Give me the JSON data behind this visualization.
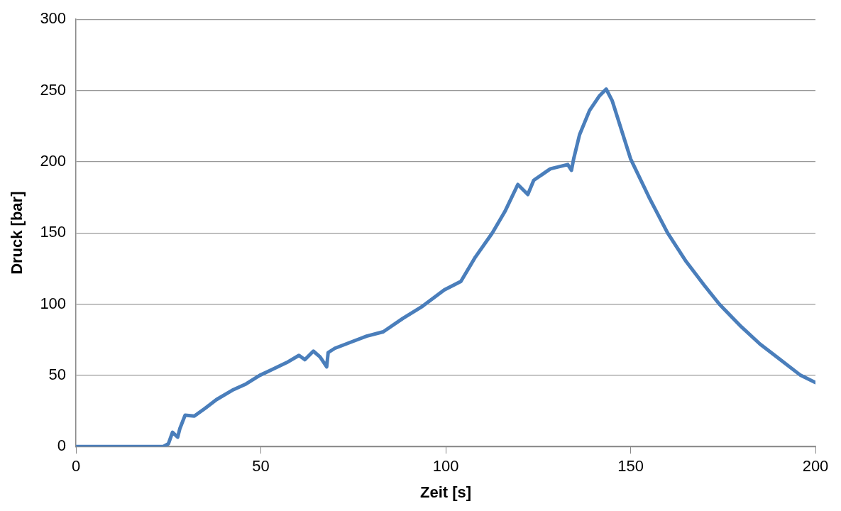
{
  "chart_data": {
    "type": "line",
    "xlabel": "Zeit [s]",
    "ylabel": "Druck [bar]",
    "x": [
      0,
      10,
      20,
      23.6,
      25,
      26.1,
      27.5,
      28.1,
      29.5,
      32,
      35,
      38,
      42.6,
      46,
      49.7,
      53,
      57,
      60.3,
      61.9,
      64.2,
      66,
      67.8,
      68.2,
      70,
      74,
      78.6,
      83.1,
      88.4,
      93.7,
      99.6,
      104.1,
      108,
      112.6,
      116,
      119.5,
      122.2,
      123.8,
      128.3,
      133,
      134,
      134.6,
      136.2,
      138.9,
      141.5,
      143.4,
      145,
      150,
      155,
      160,
      165,
      170,
      174,
      180,
      185,
      190,
      196,
      200
    ],
    "series": [
      {
        "color": "#4a7ebb",
        "values": [
          0,
          0,
          0,
          0,
          2,
          10,
          6.6,
          12.7,
          22,
          21.4,
          27,
          33,
          40,
          44,
          50,
          54,
          59,
          64,
          61,
          67,
          63,
          56,
          66,
          69,
          73,
          77.5,
          80.6,
          90,
          98.5,
          110,
          116,
          133,
          150,
          165,
          184,
          177,
          187,
          195,
          198,
          194,
          202,
          219,
          236,
          246,
          251,
          243,
          202,
          175,
          150,
          130,
          113,
          100,
          84,
          72,
          62,
          50,
          45
        ]
      }
    ],
    "xlim": [
      0,
      200
    ],
    "xticks": [
      0,
      50,
      100,
      150,
      200
    ],
    "ylim": [
      0,
      300
    ],
    "yticks": [
      0,
      50,
      100,
      150,
      200,
      250,
      300
    ],
    "grid": "y",
    "legend": false,
    "marker": "none",
    "line_style": "solid"
  }
}
